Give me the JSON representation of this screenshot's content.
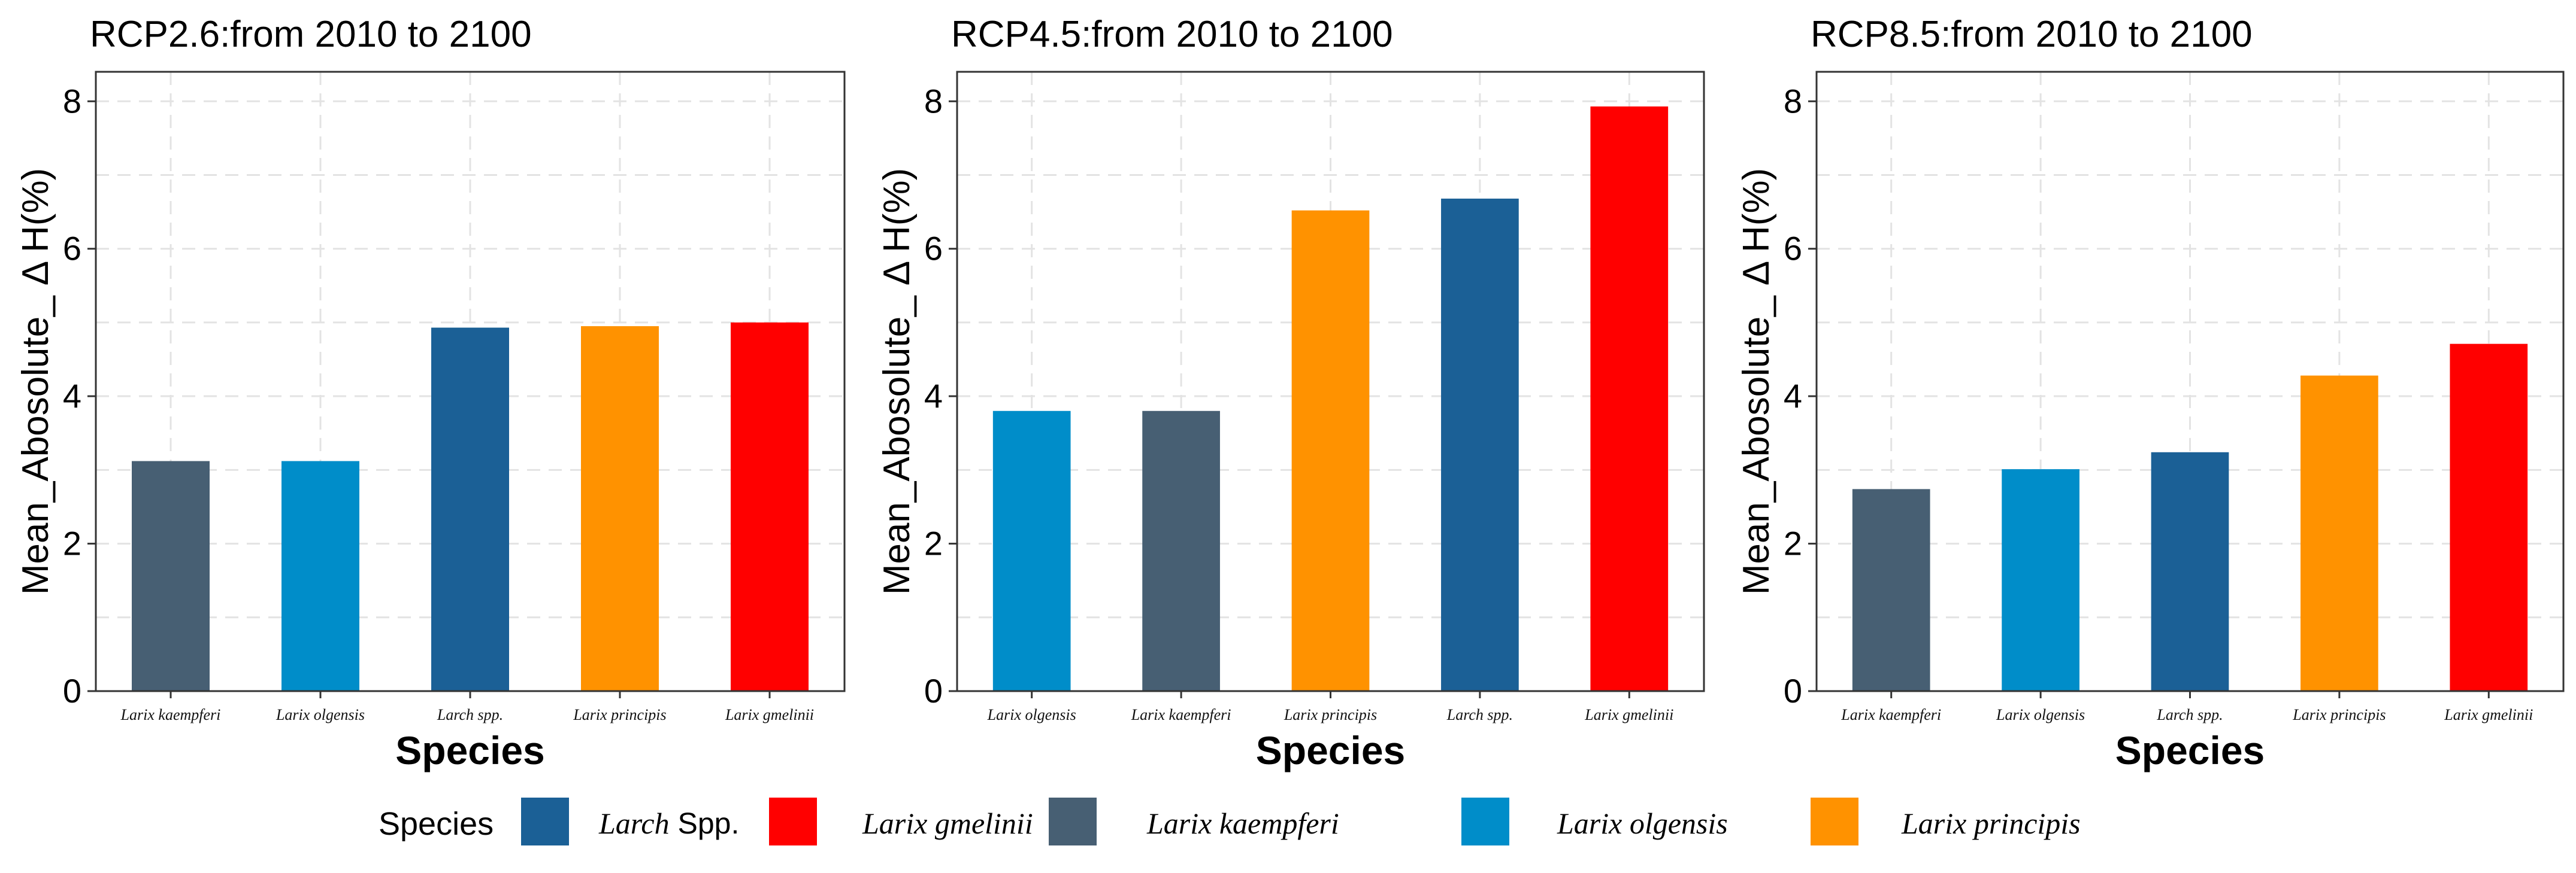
{
  "legend": {
    "title": "Species",
    "items": [
      {
        "key": "larch",
        "label_italic": "Larch",
        "label_plain": " Spp.",
        "color": "#1b6096"
      },
      {
        "key": "gmelinii",
        "label_italic": "Larix gmelinii",
        "label_plain": "",
        "color": "#ff0000"
      },
      {
        "key": "kaempferi",
        "label_italic": "Larix kaempferi",
        "label_plain": "",
        "color": "#475f73"
      },
      {
        "key": "olgensis",
        "label_italic": "Larix olgensis",
        "label_plain": "",
        "color": "#008dc9"
      },
      {
        "key": "principis",
        "label_italic": "Larix principis",
        "label_plain": "",
        "color": "#ff9200"
      }
    ]
  },
  "chart_data": [
    {
      "type": "bar",
      "title": "RCP2.6:from 2010 to 2100",
      "xlabel": "Species",
      "ylabel": "Mean_Abosolute_ Δ H(%)",
      "ylim": [
        0,
        8.4
      ],
      "yticks": [
        0,
        2,
        4,
        6,
        8
      ],
      "grid": true,
      "categories": [
        "Larix kaempferi",
        "Larix olgensis",
        "Larch spp.",
        "Larix principis",
        "Larix gmelinii"
      ],
      "keys": [
        "kaempferi",
        "olgensis",
        "larch",
        "principis",
        "gmelinii"
      ],
      "values": [
        3.12,
        3.12,
        4.93,
        4.95,
        5.0
      ]
    },
    {
      "type": "bar",
      "title": "RCP4.5:from 2010 to 2100",
      "xlabel": "Species",
      "ylabel": "Mean_Abosolute_ Δ H(%)",
      "ylim": [
        0,
        8.4
      ],
      "yticks": [
        0,
        2,
        4,
        6,
        8
      ],
      "grid": true,
      "categories": [
        "Larix olgensis",
        "Larix kaempferi",
        "Larix principis",
        "Larch spp.",
        "Larix gmelinii"
      ],
      "keys": [
        "olgensis",
        "kaempferi",
        "principis",
        "larch",
        "gmelinii"
      ],
      "values": [
        3.8,
        3.8,
        6.52,
        6.68,
        7.93
      ]
    },
    {
      "type": "bar",
      "title": "RCP8.5:from 2010 to 2100",
      "xlabel": "Species",
      "ylabel": "Mean_Abosolute_ Δ H(%)",
      "ylim": [
        0,
        8.4
      ],
      "yticks": [
        0,
        2,
        4,
        6,
        8
      ],
      "grid": true,
      "categories": [
        "Larix kaempferi",
        "Larix olgensis",
        "Larch spp.",
        "Larix principis",
        "Larix gmelinii"
      ],
      "keys": [
        "kaempferi",
        "olgensis",
        "larch",
        "principis",
        "gmelinii"
      ],
      "values": [
        2.74,
        3.01,
        3.24,
        4.28,
        4.71
      ]
    }
  ]
}
